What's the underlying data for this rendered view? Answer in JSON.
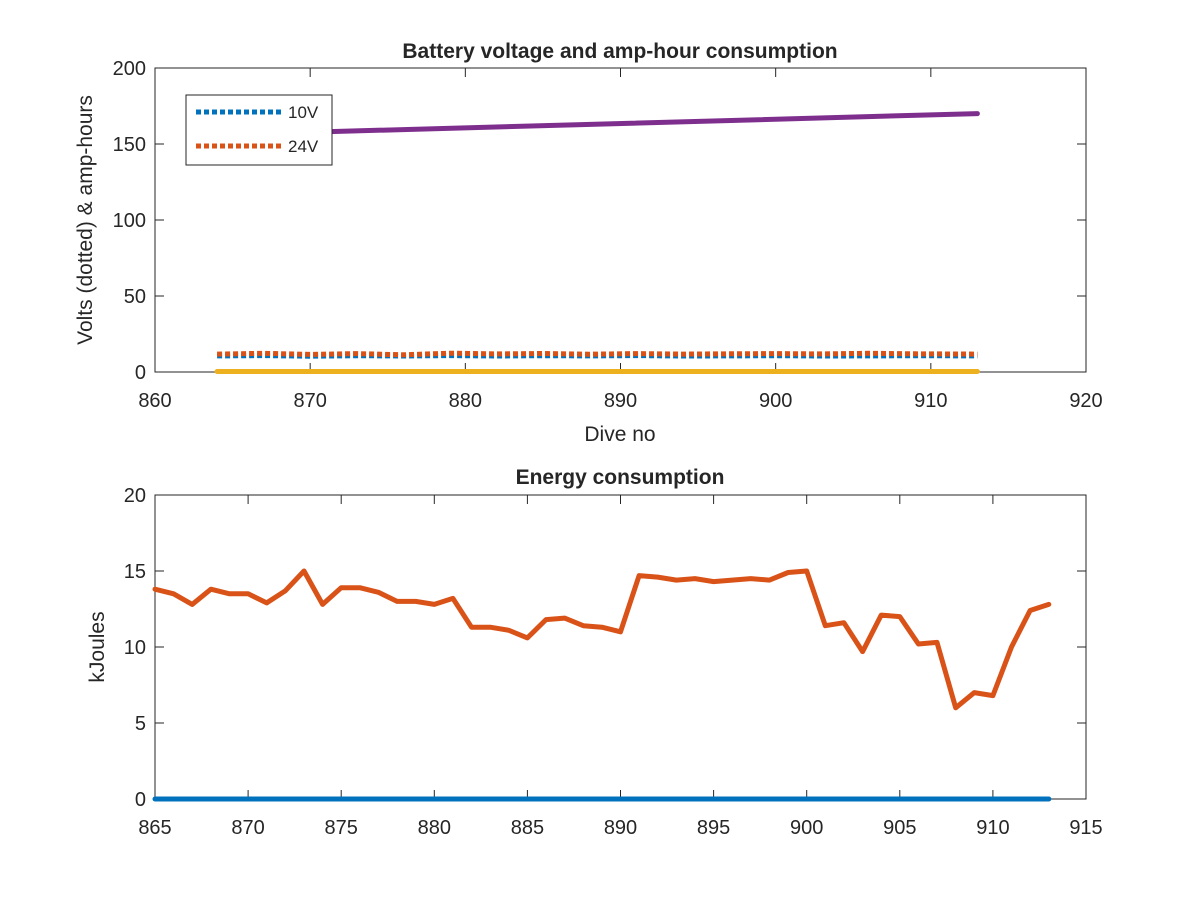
{
  "chart_data": [
    {
      "type": "line",
      "title": "Battery voltage and amp-hour consumption",
      "xlabel": "Dive no",
      "ylabel": "Volts (dotted) & amp-hours",
      "xlim": [
        860,
        920
      ],
      "ylim": [
        0,
        200
      ],
      "xticks": [
        860,
        870,
        880,
        890,
        900,
        910,
        920
      ],
      "yticks": [
        0,
        50,
        100,
        150,
        200
      ],
      "grid": false,
      "legend": {
        "placement": "top-left",
        "entries": [
          "10V",
          "24V"
        ]
      },
      "series": [
        {
          "name": "10V",
          "style": "dotted",
          "color": "#0072BD",
          "x": [
            864,
            867,
            870,
            873,
            876,
            879,
            882,
            885,
            888,
            891,
            894,
            897,
            900,
            903,
            906,
            909,
            913
          ],
          "y": [
            10.6,
            10.8,
            10.4,
            10.7,
            10.5,
            10.8,
            10.5,
            10.7,
            10.6,
            10.8,
            10.5,
            10.6,
            10.7,
            10.5,
            10.6,
            10.7,
            10.6
          ]
        },
        {
          "name": "24V",
          "style": "dotted",
          "color": "#D95319",
          "x": [
            864,
            867,
            870,
            873,
            876,
            879,
            882,
            885,
            888,
            891,
            894,
            897,
            900,
            903,
            906,
            909,
            913
          ],
          "y": [
            11.8,
            12.3,
            11.6,
            12.1,
            11.3,
            12.4,
            11.9,
            12.2,
            11.7,
            12.1,
            11.8,
            12.0,
            12.1,
            11.9,
            12.3,
            12.0,
            11.8
          ]
        },
        {
          "style": "solid",
          "color": "#EDB120",
          "x": [
            864,
            913
          ],
          "y": [
            0.3,
            0.3
          ]
        },
        {
          "style": "solid",
          "color": "#7E2F8E",
          "x": [
            869,
            913
          ],
          "y": [
            157.5,
            170
          ]
        }
      ]
    },
    {
      "type": "line",
      "title": "Energy consumption",
      "xlabel": "",
      "ylabel": "kJoules",
      "xlim": [
        865,
        915
      ],
      "ylim": [
        0,
        20
      ],
      "xticks": [
        865,
        870,
        875,
        880,
        885,
        890,
        895,
        900,
        905,
        910,
        915
      ],
      "yticks": [
        0,
        5,
        10,
        15,
        20
      ],
      "grid": false,
      "series": [
        {
          "style": "solid",
          "color": "#D95319",
          "x": [
            865,
            866,
            867,
            868,
            869,
            870,
            871,
            872,
            873,
            874,
            875,
            876,
            877,
            878,
            879,
            880,
            881,
            882,
            883,
            884,
            885,
            886,
            887,
            888,
            889,
            890,
            891,
            892,
            893,
            894,
            895,
            896,
            897,
            898,
            899,
            900,
            901,
            902,
            903,
            904,
            905,
            906,
            907,
            908,
            909,
            910,
            911,
            912,
            913
          ],
          "y": [
            13.8,
            13.5,
            12.8,
            13.8,
            13.5,
            13.5,
            12.9,
            13.7,
            15.0,
            12.8,
            13.9,
            13.9,
            13.6,
            13.0,
            13.0,
            12.8,
            13.2,
            11.3,
            11.3,
            11.1,
            10.6,
            11.8,
            11.9,
            11.4,
            11.3,
            11.0,
            14.7,
            14.6,
            14.4,
            14.5,
            14.3,
            14.4,
            14.5,
            14.4,
            14.9,
            15.0,
            11.4,
            11.6,
            9.7,
            12.1,
            12.0,
            10.2,
            10.3,
            6.0,
            7.0,
            6.8,
            10.0,
            12.4,
            12.8
          ]
        },
        {
          "style": "solid",
          "color": "#0072BD",
          "x": [
            865,
            913
          ],
          "y": [
            0,
            0
          ]
        }
      ]
    }
  ]
}
